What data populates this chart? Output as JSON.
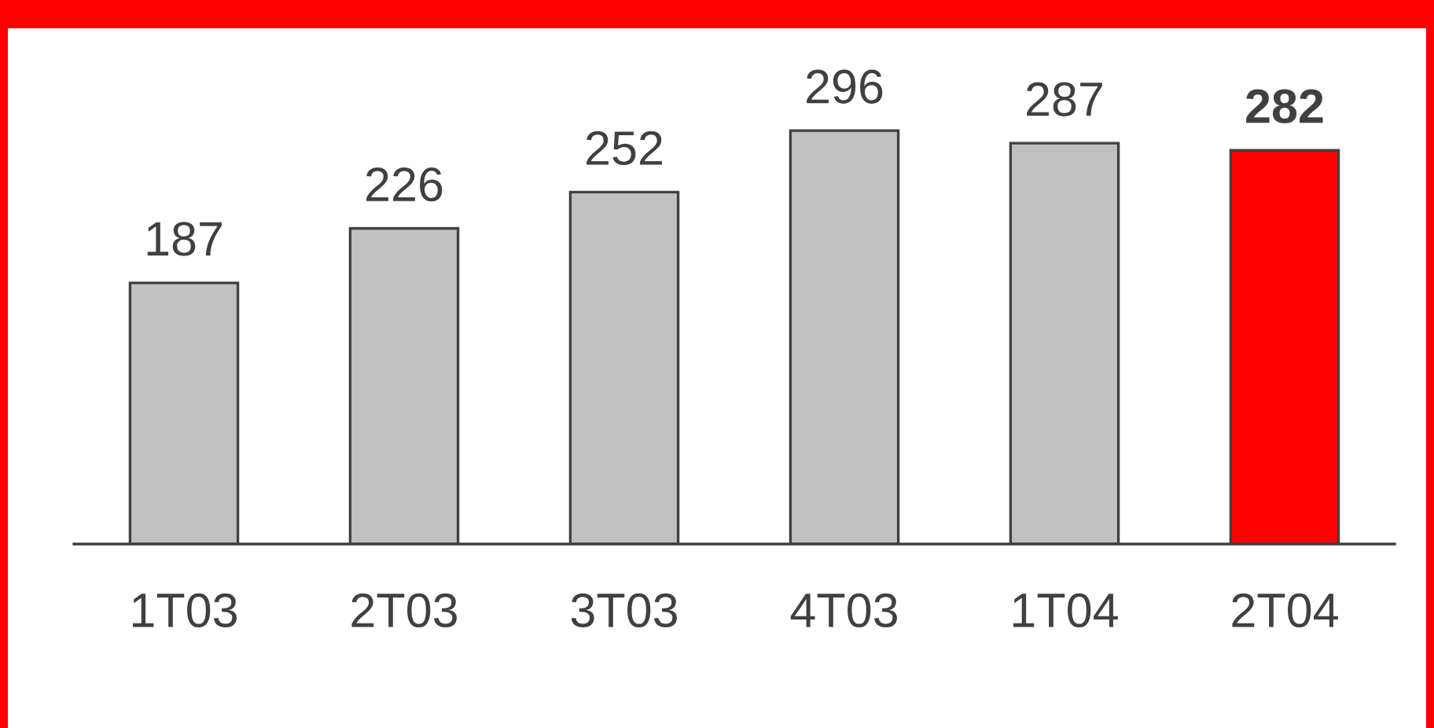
{
  "chart_data": {
    "type": "bar",
    "categories": [
      "1T03",
      "2T03",
      "3T03",
      "4T03",
      "1T04",
      "2T04"
    ],
    "values": [
      187,
      226,
      252,
      296,
      287,
      282
    ],
    "colors": [
      "#c0c0c0",
      "#c0c0c0",
      "#c0c0c0",
      "#c0c0c0",
      "#c0c0c0",
      "#ff0000"
    ],
    "data_labels": true,
    "grid": false
  }
}
